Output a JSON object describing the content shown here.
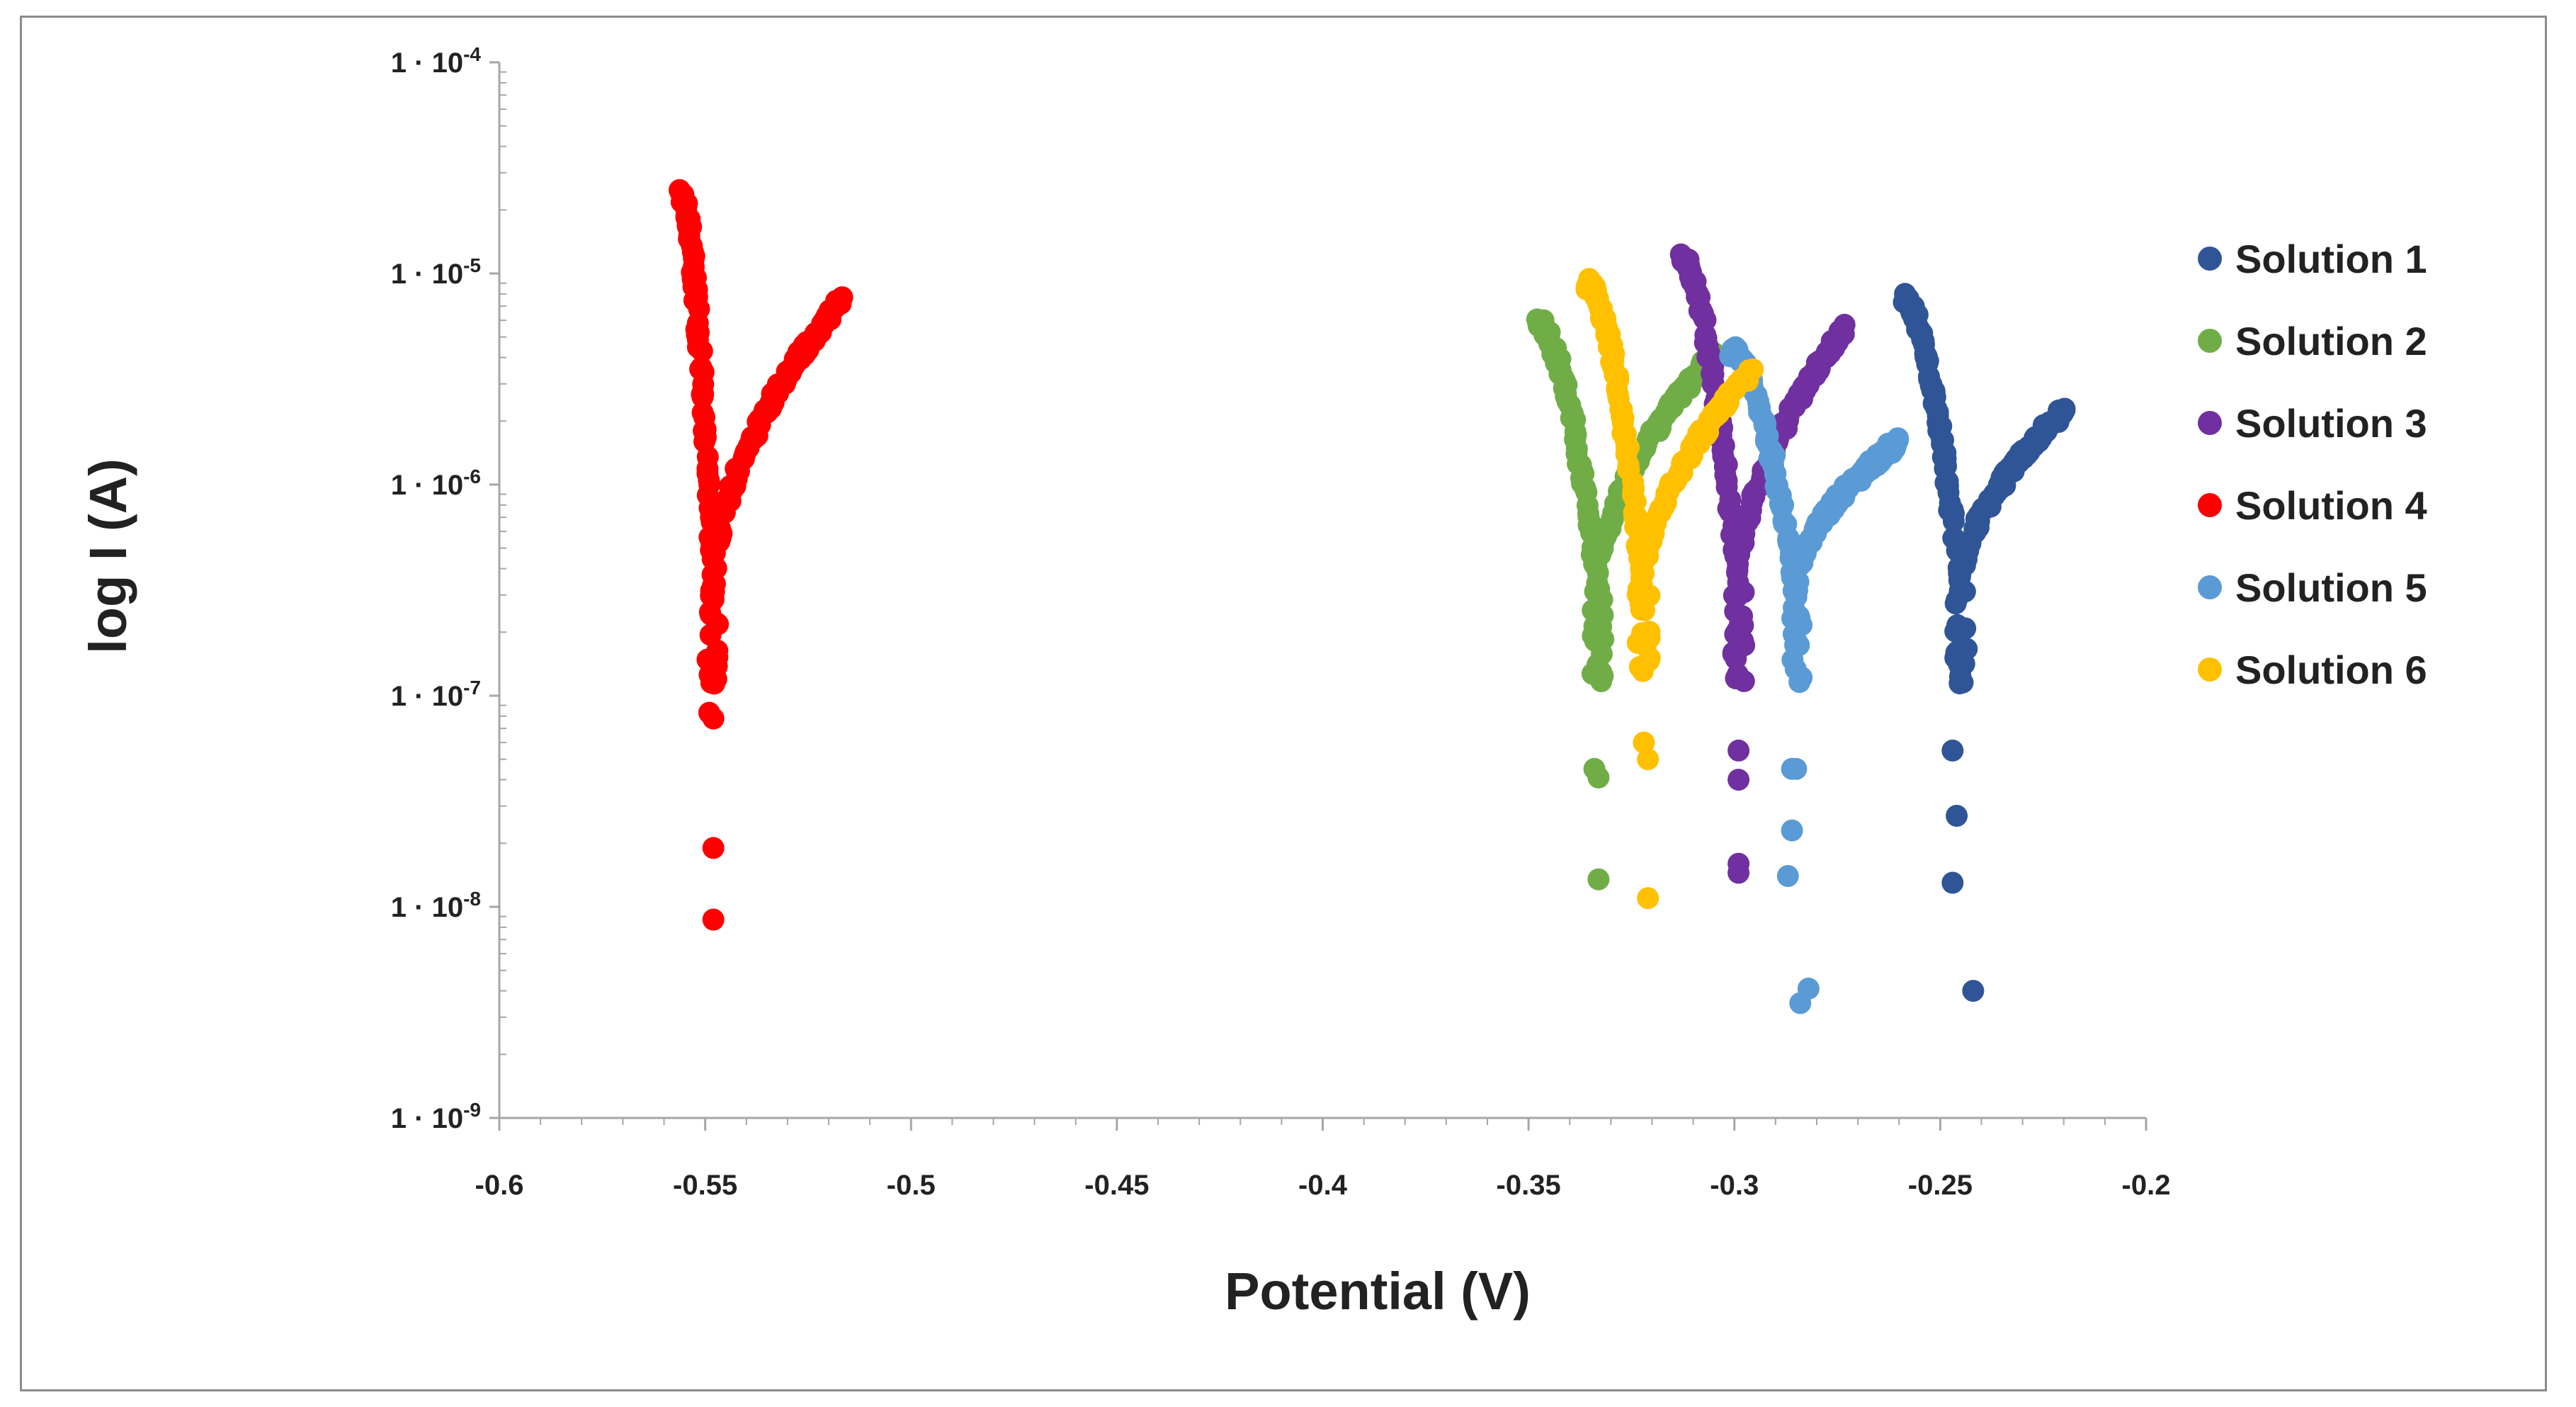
{
  "chart_data": {
    "type": "scatter",
    "title": "",
    "xlabel": "Potential (V)",
    "ylabel": "log I (A)",
    "xlim": [
      -0.6,
      -0.2
    ],
    "ylim_exponent": [
      -9,
      -4
    ],
    "x_ticks": [
      "-0.6",
      "-0.55",
      "-0.5",
      "-0.45",
      "-0.4",
      "-0.35",
      "-0.3",
      "-0.25",
      "-0.2"
    ],
    "y_ticks": [
      {
        "base": "1 · 10",
        "exp": "-4"
      },
      {
        "base": "1 · 10",
        "exp": "-5"
      },
      {
        "base": "1 · 10",
        "exp": "-6"
      },
      {
        "base": "1 · 10",
        "exp": "-7"
      },
      {
        "base": "1 · 10",
        "exp": "-8"
      },
      {
        "base": "1 · 10",
        "exp": "-9"
      }
    ],
    "legend_position": "right",
    "series": [
      {
        "name": "Solution 1",
        "color": "#2f5597",
        "corr_potential": -0.245,
        "min_current": 4e-09,
        "cathodic_start": [
          -0.259,
          7.5e-06
        ],
        "anodic_end": [
          -0.22,
          2.2e-06
        ],
        "outliers": [
          [
            -0.247,
            5.5e-08
          ],
          [
            -0.246,
            2.7e-08
          ],
          [
            -0.247,
            1.3e-08
          ],
          [
            -0.242,
            4e-09
          ]
        ]
      },
      {
        "name": "Solution 2",
        "color": "#70ad47",
        "corr_potential": -0.333,
        "min_current": 1.35e-08,
        "cathodic_start": [
          -0.348,
          6e-06
        ],
        "anodic_end": [
          -0.305,
          4.2e-06
        ],
        "outliers": [
          [
            -0.334,
            4.5e-08
          ],
          [
            -0.333,
            4.1e-08
          ],
          [
            -0.333,
            1.35e-08
          ]
        ]
      },
      {
        "name": "Solution 3",
        "color": "#7030a0",
        "corr_potential": -0.299,
        "min_current": 1.45e-08,
        "cathodic_start": [
          -0.313,
          1.2e-05
        ],
        "anodic_end": [
          -0.273,
          5.5e-06
        ],
        "outliers": [
          [
            -0.299,
            5.5e-08
          ],
          [
            -0.299,
            4e-08
          ],
          [
            -0.299,
            1.6e-08
          ],
          [
            -0.299,
            1.45e-08
          ]
        ]
      },
      {
        "name": "Solution 4",
        "color": "#ff0000",
        "corr_potential": -0.548,
        "min_current": 8.7e-09,
        "cathodic_start": [
          -0.556,
          2.4e-05
        ],
        "anodic_end": [
          -0.517,
          7.5e-06
        ],
        "outliers": [
          [
            -0.549,
            8.3e-08
          ],
          [
            -0.548,
            7.8e-08
          ],
          [
            -0.548,
            1.9e-08
          ],
          [
            -0.548,
            8.7e-09
          ]
        ]
      },
      {
        "name": "Solution 5",
        "color": "#5b9bd5",
        "corr_potential": -0.285,
        "min_current": 3.5e-09,
        "cathodic_start": [
          -0.301,
          4.3e-06
        ],
        "anodic_end": [
          -0.26,
          1.6e-06
        ],
        "outliers": [
          [
            -0.286,
            4.5e-08
          ],
          [
            -0.285,
            4.5e-08
          ],
          [
            -0.286,
            2.3e-08
          ],
          [
            -0.287,
            1.4e-08
          ],
          [
            -0.282,
            4.1e-09
          ],
          [
            -0.284,
            3.5e-09
          ]
        ]
      },
      {
        "name": "Solution 6",
        "color": "#ffc000",
        "corr_potential": -0.322,
        "min_current": 1.1e-08,
        "cathodic_start": [
          -0.336,
          9e-06
        ],
        "anodic_end": [
          -0.296,
          3.4e-06
        ],
        "outliers": [
          [
            -0.322,
            6e-08
          ],
          [
            -0.321,
            5e-08
          ],
          [
            -0.321,
            1.1e-08
          ]
        ]
      }
    ]
  }
}
